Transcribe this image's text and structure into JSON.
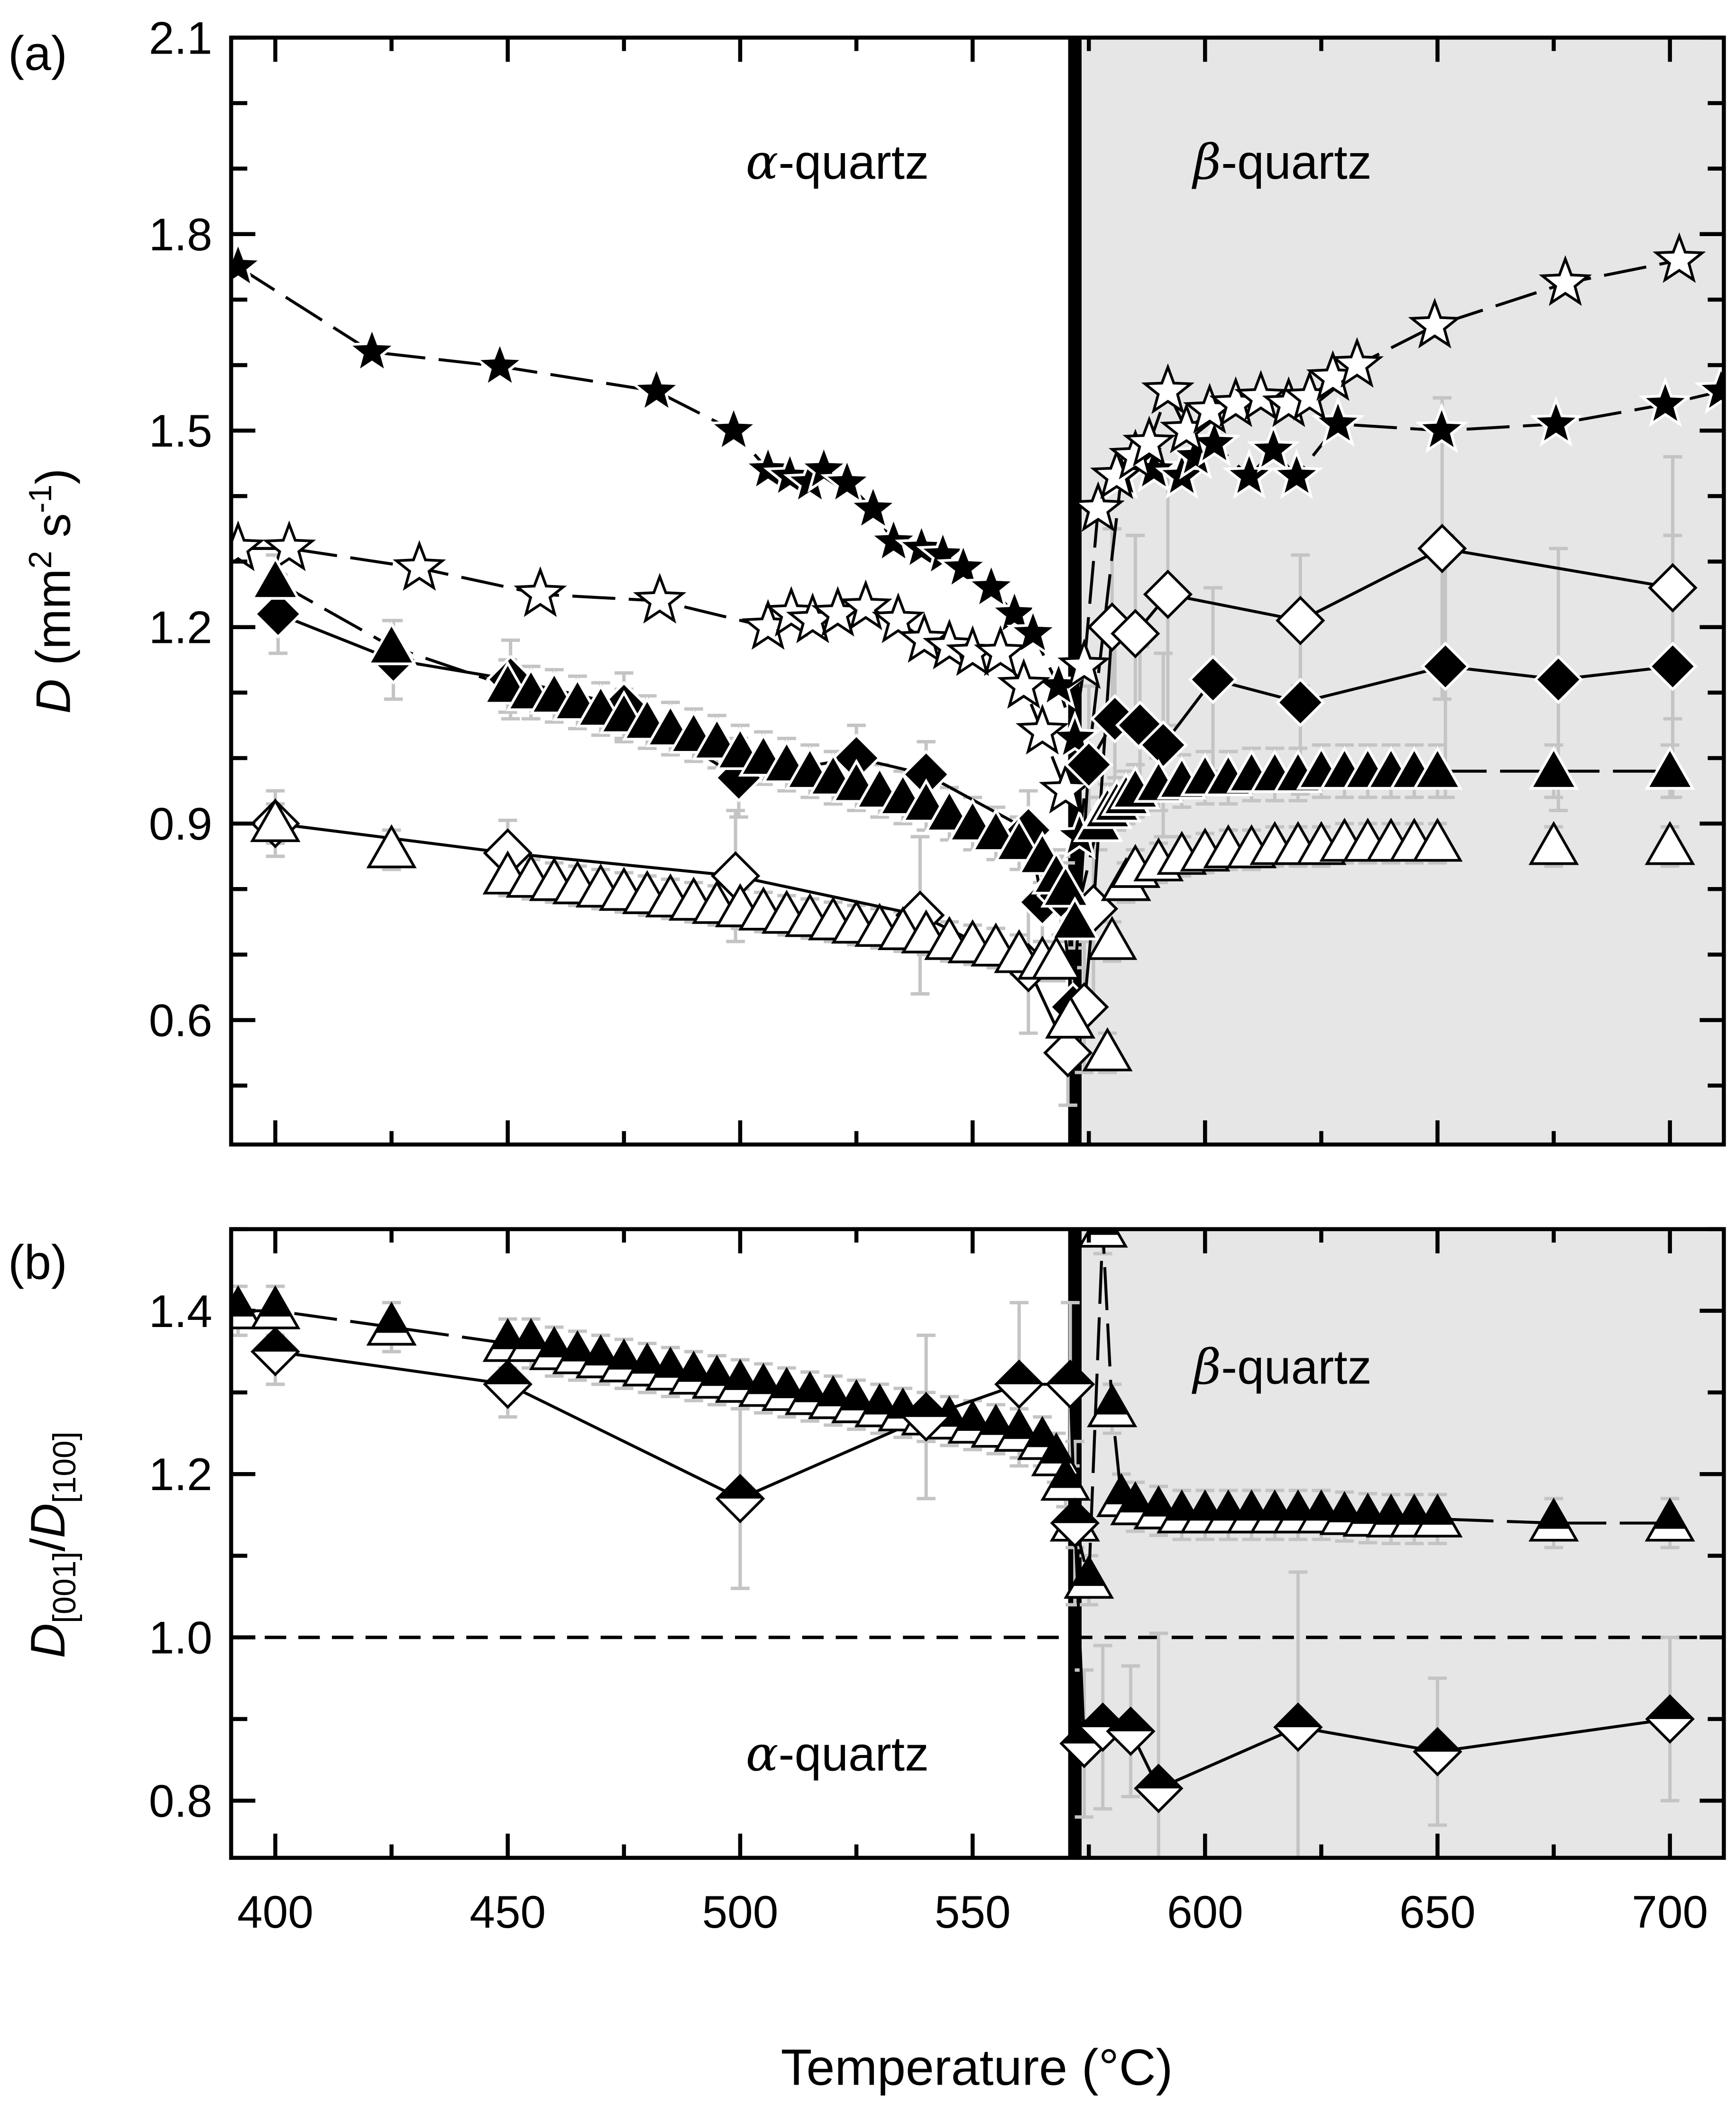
{
  "chart_data": [
    {
      "panel_label": "(a)",
      "type": "scatter",
      "xlabel": "Temperature (°C)",
      "ylabel": {
        "main": "D",
        "unit_open": " (mm",
        "sup1": "2",
        "mid": " s",
        "sup2": "-1",
        "close": ")"
      },
      "xlim": [
        390.5,
        711.6
      ],
      "ylim": [
        0.41,
        2.1
      ],
      "xticks": [
        400,
        450,
        500,
        550,
        600,
        650,
        700
      ],
      "yticks": [
        "0.6",
        "0.9",
        "1.2",
        "1.5",
        "1.8",
        "2.1"
      ],
      "transition_T": 572,
      "shaded_from_T": 573.5,
      "annotations": {
        "alpha": "α-quartz",
        "alpha_prefix": "α",
        "alpha_suffix": "-quartz",
        "beta_prefix": "β",
        "beta_suffix": "-quartz"
      },
      "series": [
        {
          "name": "filled-stars",
          "marker": "star",
          "fill": "#000000",
          "line": "dash",
          "x": [
            392,
            420.8,
            448.3,
            482,
            498.6,
            506,
            510.7,
            515,
            518,
            523,
            528.6,
            533,
            539,
            543.6,
            548,
            554,
            559,
            563,
            568.5,
            572,
            573,
            582,
            589,
            595,
            598,
            602,
            609.5,
            614.7,
            619.7,
            628.6,
            650.9,
            675.5,
            699,
            711
          ],
          "y": [
            1.75,
            1.62,
            1.598,
            1.56,
            1.5,
            1.44,
            1.43,
            1.42,
            1.44,
            1.42,
            1.38,
            1.33,
            1.32,
            1.31,
            1.29,
            1.26,
            1.22,
            1.19,
            1.11,
            1.03,
            0.88,
            1.43,
            1.44,
            1.43,
            1.46,
            1.48,
            1.43,
            1.47,
            1.43,
            1.51,
            1.5,
            1.51,
            1.54,
            1.56
          ]
        },
        {
          "name": "open-stars",
          "marker": "star",
          "fill": "#ffffff",
          "line": "dash",
          "x": [
            392,
            403,
            431,
            457,
            482.7,
            506,
            511,
            515.6,
            521,
            527,
            534,
            539.6,
            545,
            550,
            556,
            561,
            565,
            570,
            574,
            577,
            581,
            585,
            588,
            592,
            596,
            601,
            606.6,
            612,
            618,
            622.5,
            627.5,
            632.7,
            649.4,
            677.5,
            702
          ],
          "y": [
            1.32,
            1.32,
            1.29,
            1.25,
            1.24,
            1.2,
            1.22,
            1.21,
            1.22,
            1.23,
            1.21,
            1.18,
            1.17,
            1.16,
            1.16,
            1.11,
            1.04,
            0.95,
            1.14,
            1.38,
            1.43,
            1.46,
            1.48,
            1.56,
            1.5,
            1.53,
            1.54,
            1.55,
            1.54,
            1.55,
            1.58,
            1.6,
            1.66,
            1.725,
            1.76
          ]
        },
        {
          "name": "filled-diamonds",
          "marker": "diamond",
          "fill": "#000000",
          "line": "solid",
          "x": [
            400.6,
            425.4,
            450.6,
            475,
            499.7,
            525,
            540,
            562,
            565,
            569,
            571.6,
            575,
            580.6,
            586,
            591,
            601.7,
            620.5,
            651.7,
            676,
            700.6
          ],
          "y": [
            1.22,
            1.15,
            1.12,
            1.08,
            0.97,
            1.0,
            0.975,
            0.89,
            0.78,
            0.79,
            0.62,
            0.99,
            1.06,
            1.05,
            1.02,
            1.12,
            1.085,
            1.14,
            1.12,
            1.14
          ],
          "err": [
            0.06,
            0.06,
            0.06,
            0.05,
            0.06,
            0.05,
            0.05,
            0.06,
            0.06,
            0.06,
            0.06,
            0.12,
            0.12,
            0.12,
            0.14,
            0.14,
            0.14,
            0.2,
            0.2,
            0.2
          ]
        },
        {
          "name": "open-diamonds",
          "marker": "diamond",
          "fill": "#ffffff",
          "line": "solid",
          "x": [
            400,
            450,
            499,
            538.7,
            562,
            570.5,
            574,
            576,
            580,
            585,
            592,
            620.5,
            651,
            700.6
          ],
          "y": [
            0.9,
            0.855,
            0.82,
            0.76,
            0.68,
            0.55,
            0.62,
            0.77,
            1.2,
            1.19,
            1.25,
            1.21,
            1.32,
            1.26
          ],
          "err": [
            0.05,
            0.05,
            0.1,
            0.12,
            0.1,
            0.08,
            0.1,
            0.15,
            0.15,
            0.15,
            0.2,
            0.1,
            0.23,
            0.2
          ]
        },
        {
          "name": "filled-triangles",
          "marker": "triangle",
          "fill": "#000000",
          "line": "dash",
          "x": [
            400,
            425,
            450,
            455,
            460,
            465,
            470,
            475,
            480,
            485,
            490,
            495,
            500,
            505,
            510,
            515,
            520,
            525,
            530,
            535,
            540,
            545,
            550,
            555,
            560,
            565,
            568,
            570,
            572,
            577,
            579,
            581,
            583,
            585,
            590,
            595,
            600,
            605,
            610,
            615,
            620,
            625,
            630,
            635,
            640,
            645,
            650,
            675,
            700
          ],
          "y": [
            1.27,
            1.17,
            1.11,
            1.1,
            1.095,
            1.085,
            1.075,
            1.065,
            1.055,
            1.045,
            1.035,
            1.025,
            1.01,
            1.0,
            0.99,
            0.98,
            0.97,
            0.96,
            0.95,
            0.94,
            0.93,
            0.915,
            0.9,
            0.885,
            0.87,
            0.85,
            0.82,
            0.8,
            0.75,
            0.9,
            0.92,
            0.93,
            0.94,
            0.95,
            0.96,
            0.965,
            0.97,
            0.97,
            0.975,
            0.975,
            0.975,
            0.98,
            0.98,
            0.98,
            0.98,
            0.98,
            0.98,
            0.98,
            0.98
          ],
          "err": 0.04
        },
        {
          "name": "open-triangles",
          "marker": "triangle",
          "fill": "#ffffff",
          "line": "none",
          "x": [
            400,
            425,
            450,
            455,
            460,
            465,
            470,
            475,
            480,
            485,
            490,
            495,
            500,
            505,
            510,
            515,
            520,
            525,
            530,
            535,
            540,
            545,
            550,
            555,
            560,
            565,
            568,
            571,
            579,
            580,
            583,
            585,
            590,
            595,
            600,
            605,
            610,
            615,
            620,
            625,
            630,
            635,
            640,
            645,
            650,
            675,
            700
          ],
          "y": [
            0.9,
            0.86,
            0.82,
            0.815,
            0.81,
            0.805,
            0.8,
            0.795,
            0.79,
            0.785,
            0.78,
            0.775,
            0.77,
            0.765,
            0.76,
            0.755,
            0.75,
            0.745,
            0.74,
            0.735,
            0.73,
            0.72,
            0.715,
            0.71,
            0.7,
            0.69,
            0.69,
            0.6,
            0.55,
            0.72,
            0.81,
            0.83,
            0.84,
            0.85,
            0.855,
            0.86,
            0.86,
            0.865,
            0.865,
            0.865,
            0.87,
            0.87,
            0.87,
            0.87,
            0.87,
            0.865,
            0.865
          ],
          "err": 0.03
        }
      ]
    },
    {
      "panel_label": "(b)",
      "type": "scatter",
      "xlabel": "Temperature (°C)",
      "ylabel": {
        "d1": "D",
        "sub1": "[001]",
        "slash": "/",
        "d2": "D",
        "sub2": "[100]"
      },
      "xlim": [
        390.5,
        711.6
      ],
      "ylim": [
        0.73,
        1.5
      ],
      "xticks": [
        400,
        450,
        500,
        550,
        600,
        650,
        700
      ],
      "yticks": [
        "0.8",
        "1.0",
        "1.2",
        "1.4"
      ],
      "reference_line": 1.0,
      "transition_T": 572,
      "shaded_from_T": 573.5,
      "series": [
        {
          "name": "ratio-triangles",
          "marker": "half-triangle",
          "line": "dash",
          "x": [
            392,
            400,
            425,
            450,
            455,
            460,
            465,
            470,
            475,
            480,
            485,
            490,
            495,
            500,
            505,
            510,
            515,
            520,
            525,
            530,
            535,
            540,
            545,
            550,
            555,
            560,
            565,
            568,
            570,
            572,
            575,
            578,
            580,
            582,
            585,
            590,
            595,
            600,
            605,
            610,
            615,
            620,
            625,
            630,
            635,
            640,
            645,
            650,
            675,
            700
          ],
          "y": [
            1.4,
            1.4,
            1.38,
            1.36,
            1.36,
            1.35,
            1.345,
            1.34,
            1.335,
            1.33,
            1.325,
            1.32,
            1.315,
            1.31,
            1.305,
            1.3,
            1.295,
            1.29,
            1.285,
            1.28,
            1.275,
            1.27,
            1.265,
            1.26,
            1.255,
            1.25,
            1.24,
            1.22,
            1.19,
            1.14,
            1.07,
            1.5,
            1.28,
            1.17,
            1.16,
            1.155,
            1.15,
            1.15,
            1.15,
            1.15,
            1.15,
            1.15,
            1.15,
            1.148,
            1.146,
            1.145,
            1.145,
            1.145,
            1.14,
            1.14
          ],
          "err": 0.03
        },
        {
          "name": "ratio-diamonds",
          "marker": "half-diamond",
          "line": "solid",
          "x": [
            400,
            450,
            500,
            540,
            560,
            571,
            572,
            574,
            578,
            584,
            590,
            620,
            650,
            700
          ],
          "y": [
            1.35,
            1.31,
            1.17,
            1.27,
            1.31,
            1.31,
            1.14,
            0.87,
            0.89,
            0.885,
            0.815,
            0.89,
            0.86,
            0.9
          ],
          "err": [
            0.04,
            0.04,
            0.11,
            0.1,
            0.1,
            0.1,
            0.1,
            0.09,
            0.1,
            0.08,
            0.19,
            0.19,
            0.09,
            0.1
          ]
        }
      ]
    }
  ]
}
